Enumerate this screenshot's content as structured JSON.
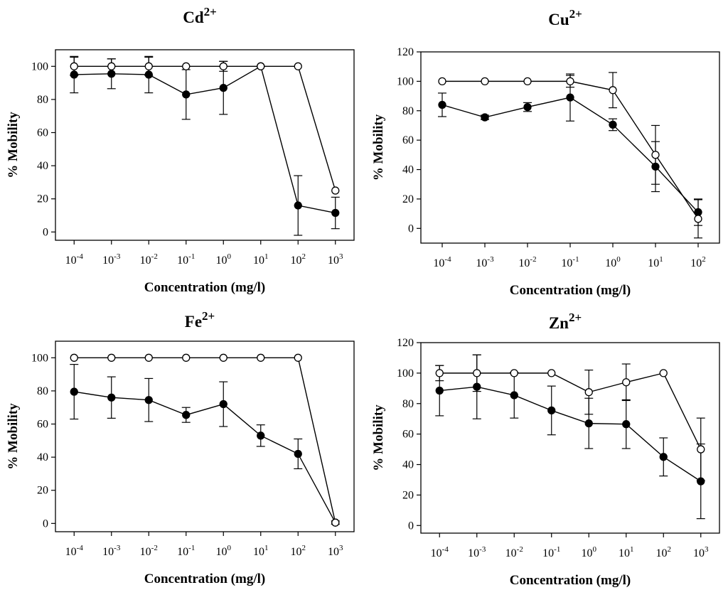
{
  "chart_data": [
    {
      "type": "line",
      "title": "Cd",
      "title_superscript": "2+",
      "xlabel": "Concentration (mg/l)",
      "ylabel": "% Mobility",
      "x_base": "10",
      "x_exponents": [
        "-4",
        "-3",
        "-2",
        "-1",
        "0",
        "1",
        "2",
        "3"
      ],
      "ylim": [
        -5,
        110
      ],
      "yticks": [
        0,
        20,
        40,
        60,
        80,
        100
      ],
      "grid": false,
      "series": [
        {
          "name": "open circles",
          "marker": "open-circle",
          "values": [
            100,
            100,
            100,
            100,
            100,
            100,
            100,
            25
          ],
          "errors": [
            5.5,
            4.5,
            5.5,
            0,
            3,
            0,
            0,
            0
          ]
        },
        {
          "name": "filled circles",
          "marker": "filled-circle",
          "values": [
            95,
            95.5,
            95,
            83,
            87,
            100,
            16,
            11.5
          ],
          "errors": [
            11,
            9,
            11,
            15,
            16,
            0,
            18,
            9.5
          ]
        }
      ]
    },
    {
      "type": "line",
      "title": "Cu",
      "title_superscript": "2+",
      "xlabel": "Concentration (mg/l)",
      "ylabel": "% Mobility",
      "x_base": "10",
      "x_exponents": [
        "-4",
        "-3",
        "-2",
        "-1",
        "0",
        "1",
        "2"
      ],
      "ylim": [
        -10,
        120
      ],
      "yticks": [
        0,
        20,
        40,
        60,
        80,
        100,
        120
      ],
      "grid": false,
      "series": [
        {
          "name": "open circles",
          "marker": "open-circle",
          "values": [
            100,
            100,
            100,
            100,
            94,
            50,
            6.5
          ],
          "errors": [
            0,
            0,
            0,
            4,
            12,
            20,
            13
          ]
        },
        {
          "name": "filled circles",
          "marker": "filled-circle",
          "values": [
            84,
            75.5,
            82.5,
            89,
            70.5,
            42,
            11
          ],
          "errors": [
            8,
            1.5,
            3,
            16,
            4,
            17,
            9
          ]
        }
      ]
    },
    {
      "type": "line",
      "title": "Fe",
      "title_superscript": "2+",
      "xlabel": "Concentration (mg/l)",
      "ylabel": "% Mobility",
      "x_base": "10",
      "x_exponents": [
        "-4",
        "-3",
        "-2",
        "-1",
        "0",
        "1",
        "2",
        "3"
      ],
      "ylim": [
        -5,
        110
      ],
      "yticks": [
        0,
        20,
        40,
        60,
        80,
        100
      ],
      "grid": false,
      "series": [
        {
          "name": "open circles",
          "marker": "open-circle",
          "values": [
            100,
            100,
            100,
            100,
            100,
            100,
            100,
            0.5
          ],
          "errors": [
            0,
            0,
            0,
            0,
            0,
            0,
            0,
            0
          ]
        },
        {
          "name": "filled circles",
          "marker": "filled-circle",
          "values": [
            79.5,
            76,
            74.5,
            65.5,
            72,
            53,
            42,
            0.5
          ],
          "errors": [
            16.5,
            12.5,
            13,
            4.5,
            13.5,
            6.5,
            9,
            1
          ]
        }
      ]
    },
    {
      "type": "line",
      "title": "Zn",
      "title_superscript": "2+",
      "xlabel": "Concentration (mg/l)",
      "ylabel": "% Mobility",
      "x_base": "10",
      "x_exponents": [
        "-4",
        "-3",
        "-2",
        "-1",
        "0",
        "1",
        "2",
        "3"
      ],
      "ylim": [
        -5,
        120
      ],
      "yticks": [
        0,
        20,
        40,
        60,
        80,
        100,
        120
      ],
      "grid": false,
      "series": [
        {
          "name": "open circles",
          "marker": "open-circle",
          "values": [
            100,
            100,
            100,
            100,
            87.5,
            94,
            100,
            50
          ],
          "errors": [
            5,
            12,
            0,
            0,
            14.5,
            12,
            0,
            20.5
          ]
        },
        {
          "name": "filled circles",
          "marker": "filled-circle",
          "values": [
            88.5,
            91,
            85.5,
            75.5,
            67,
            66.5,
            45,
            29
          ],
          "errors": [
            16.5,
            21,
            15,
            16,
            16.5,
            16,
            12.5,
            24.5
          ]
        }
      ]
    }
  ]
}
